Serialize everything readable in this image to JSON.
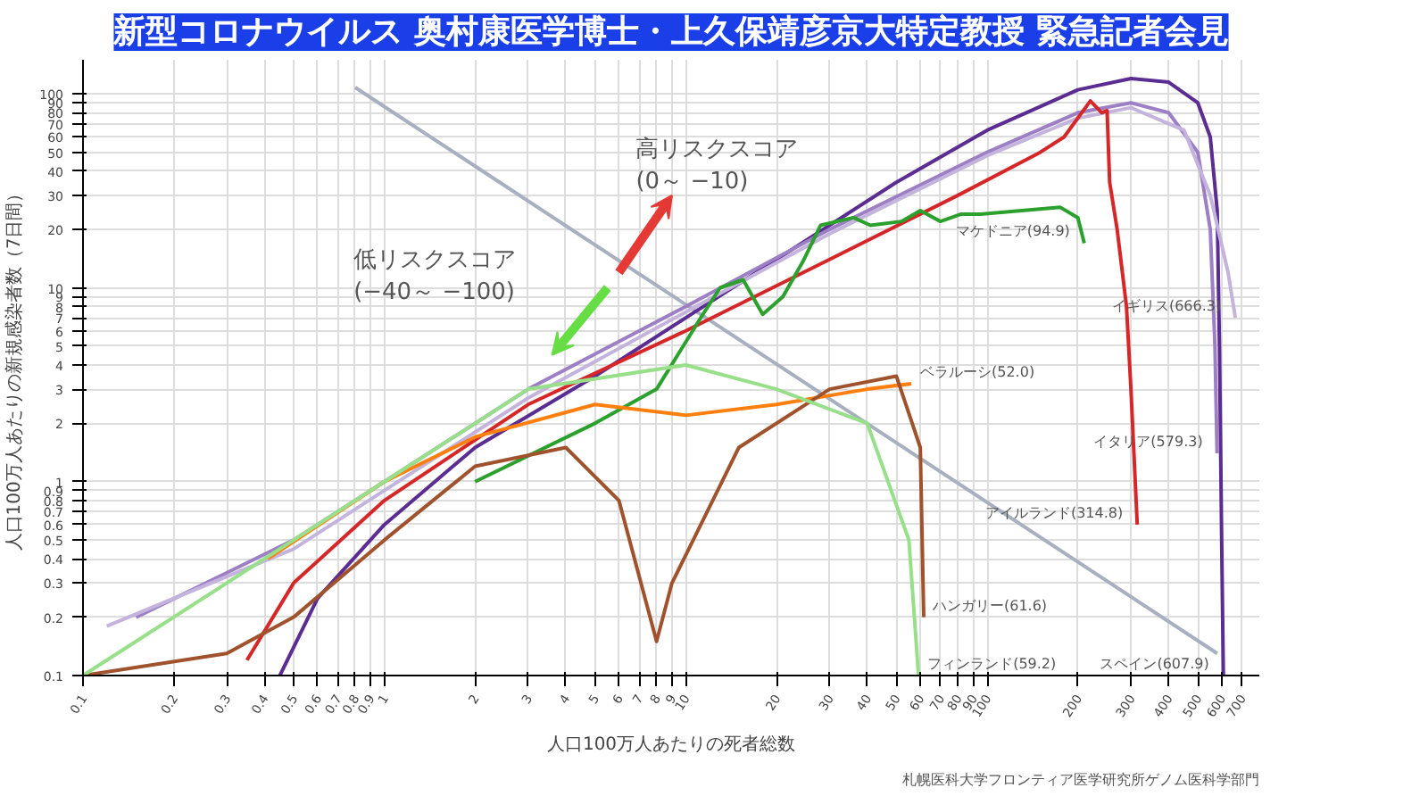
{
  "chart_data": {
    "type": "line",
    "title": "新型コロナウイルス 奥村康医学博士・上久保靖彦京大特定教授 緊急記者会見",
    "xlabel": "人口100万人あたりの死者総数",
    "ylabel": "人口100万人あたりの新規感染者数（7日間）",
    "log": "xy",
    "grid": true,
    "marker": "none",
    "xlim": [
      0.1,
      800
    ],
    "ylim": [
      0.1,
      150
    ],
    "xticks": [
      0.1,
      0.2,
      0.3,
      0.4,
      0.5,
      0.6,
      0.7,
      0.8,
      0.9,
      1,
      2,
      3,
      4,
      5,
      6,
      7,
      8,
      9,
      10,
      20,
      30,
      40,
      50,
      60,
      70,
      80,
      90,
      100,
      200,
      300,
      400,
      500,
      600,
      700
    ],
    "yticks": [
      0.1,
      0.2,
      0.3,
      0.4,
      0.5,
      0.6,
      0.7,
      0.8,
      0.9,
      1,
      2,
      3,
      4,
      5,
      6,
      7,
      8,
      9,
      10,
      20,
      30,
      40,
      50,
      60,
      70,
      80,
      90,
      100
    ],
    "annotations": [
      "高リスクスコア\n(0～ −10)",
      "低リスクスコア\n(−40～ −100)",
      "札幌医科大学フロンティア医学研究所ゲノム医科学部門"
    ],
    "series": [
      {
        "color": "#a8b0c0",
        "x": [
          0.8,
          580
        ],
        "values": [
          108,
          0.13
        ]
      },
      {
        "name": "スペイン(607.9)",
        "color": "#5b2c91",
        "x": [
          0.45,
          0.6,
          1,
          2,
          5,
          10,
          20,
          50,
          100,
          200,
          300,
          400,
          500,
          550,
          580,
          590,
          600,
          607.9
        ],
        "values": [
          0.1,
          0.25,
          0.6,
          1.5,
          3.5,
          7,
          14,
          35,
          65,
          105,
          120,
          115,
          90,
          60,
          25,
          5,
          0.5,
          0.1
        ]
      },
      {
        "name": "イタリア(579.3)",
        "color": "#9c7fc4",
        "x": [
          0.15,
          0.5,
          1,
          3,
          10,
          30,
          100,
          200,
          300,
          400,
          500,
          550,
          570,
          579.3
        ],
        "values": [
          0.2,
          0.5,
          1,
          3,
          8,
          20,
          50,
          80,
          90,
          80,
          50,
          20,
          5,
          1.4
        ]
      },
      {
        "name": "イギリス(666.3)",
        "color": "#c3b3dd",
        "x": [
          0.12,
          0.5,
          1,
          3,
          10,
          30,
          100,
          200,
          300,
          450,
          550,
          630,
          666.3
        ],
        "values": [
          0.18,
          0.45,
          0.9,
          2.7,
          7.5,
          19,
          48,
          75,
          85,
          65,
          30,
          12,
          7
        ]
      },
      {
        "name": "アイルランド(314.8)",
        "color": "#d62728",
        "x": [
          0.35,
          0.5,
          1,
          3,
          10,
          30,
          80,
          150,
          180,
          220,
          240,
          250,
          255,
          270,
          290,
          300,
          314.8
        ],
        "values": [
          0.12,
          0.3,
          0.8,
          2.5,
          6,
          14,
          30,
          50,
          60,
          92,
          80,
          82,
          35,
          20,
          8,
          3,
          0.6
        ]
      },
      {
        "name": "マケドニア(94.9)",
        "color": "#2ca02c",
        "x": [
          2,
          5,
          8,
          11.4,
          13,
          15.5,
          18,
          21,
          24.5,
          28,
          36,
          41,
          52,
          60,
          70,
          82,
          95,
          175,
          200,
          210
        ],
        "values": [
          1,
          2,
          3,
          7.3,
          10,
          11,
          7.3,
          9,
          13.7,
          21,
          23,
          21,
          22,
          25,
          22,
          24,
          24,
          26,
          23,
          17
        ]
      },
      {
        "name": "ベラルーシ(52.0)",
        "color": "#ff7f0e",
        "x": [
          0.41,
          1,
          2,
          5,
          10,
          20,
          40,
          56
        ],
        "values": [
          0.4,
          1,
          1.7,
          2.5,
          2.2,
          2.5,
          3,
          3.2
        ]
      },
      {
        "name": "ハンガリー(61.6)",
        "color": "#a0522d",
        "x": [
          0.1,
          0.3,
          0.5,
          1,
          2,
          4,
          6,
          8,
          9,
          15,
          30,
          50,
          60,
          61.6
        ],
        "values": [
          0.1,
          0.13,
          0.2,
          0.5,
          1.2,
          1.5,
          0.8,
          0.15,
          0.3,
          1.5,
          3,
          3.5,
          1.5,
          0.2
        ]
      },
      {
        "name": "フィンランド(59.2)",
        "color": "#98df8a",
        "x": [
          0.1,
          1,
          3,
          10,
          20,
          40,
          55,
          59.2
        ],
        "values": [
          0.1,
          1,
          3,
          4,
          3,
          2,
          0.5,
          0.1
        ]
      }
    ]
  }
}
